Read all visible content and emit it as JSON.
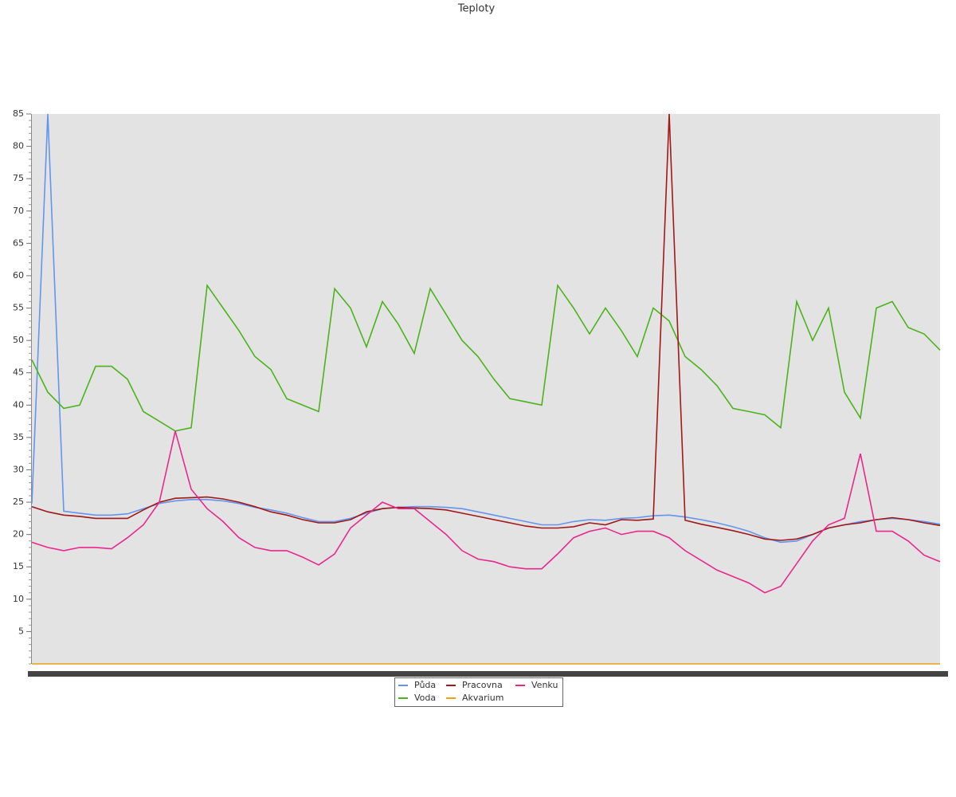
{
  "chart_data": {
    "type": "line",
    "title": "Teploty",
    "ylim": [
      0,
      85
    ],
    "yticks": [
      5,
      10,
      15,
      20,
      25,
      30,
      35,
      40,
      45,
      50,
      55,
      60,
      65,
      70,
      75,
      80,
      85
    ],
    "series": [
      {
        "name": "Půda",
        "color": "#6495ed",
        "values": [
          24.8,
          85,
          23.6,
          23.3,
          23,
          23,
          23.2,
          24,
          24.8,
          25.2,
          25.4,
          25.4,
          25.2,
          24.8,
          24.2,
          23.8,
          23.3,
          22.6,
          22,
          22,
          22.5,
          23.3,
          24,
          24.2,
          24.3,
          24.3,
          24.2,
          24,
          23.5,
          23,
          22.5,
          22,
          21.5,
          21.5,
          22,
          22.3,
          22.2,
          22.5,
          22.6,
          22.9,
          23,
          22.7,
          22.3,
          21.8,
          21.2,
          20.5,
          19.5,
          18.8,
          19,
          20,
          21,
          21.5,
          22,
          22.3,
          22.5,
          22.3,
          22,
          21.6
        ]
      },
      {
        "name": "Voda",
        "color": "#4cb31c",
        "values": [
          47,
          42,
          39.5,
          40,
          46,
          46,
          44,
          39,
          37.5,
          36,
          36.5,
          58.5,
          55,
          51.5,
          47.5,
          45.5,
          41,
          40,
          39,
          58,
          55,
          49,
          56,
          52.5,
          48,
          58,
          54,
          50,
          47.5,
          44,
          41,
          40.5,
          40,
          58.5,
          55,
          51,
          55,
          51.5,
          47.5,
          55,
          53,
          47.5,
          45.5,
          43,
          39.5,
          39,
          38.5,
          36.5,
          56,
          50,
          55,
          42,
          38,
          55,
          56,
          52,
          51,
          48.5
        ]
      },
      {
        "name": "Pracovna",
        "color": "#a01818",
        "values": [
          24.3,
          23.5,
          23,
          22.8,
          22.5,
          22.5,
          22.5,
          23.8,
          25,
          25.6,
          25.7,
          25.8,
          25.5,
          25,
          24.3,
          23.5,
          23,
          22.3,
          21.8,
          21.8,
          22.3,
          23.5,
          24,
          24.2,
          24.1,
          24,
          23.8,
          23.3,
          22.8,
          22.3,
          21.8,
          21.3,
          21,
          21,
          21.2,
          21.8,
          21.5,
          22.3,
          22.2,
          22.4,
          85,
          22.2,
          21.6,
          21.1,
          20.6,
          20,
          19.3,
          19.1,
          19.3,
          20,
          21,
          21.5,
          21.8,
          22.3,
          22.6,
          22.3,
          21.8,
          21.4
        ]
      },
      {
        "name": "Akvarium",
        "color": "#e8a317",
        "values": [
          0,
          0,
          0,
          0,
          0,
          0,
          0,
          0,
          0,
          0,
          0,
          0,
          0,
          0,
          0,
          0,
          0,
          0,
          0,
          0,
          0,
          0,
          0,
          0,
          0,
          0,
          0,
          0,
          0,
          0,
          0,
          0,
          0,
          0,
          0,
          0,
          0,
          0,
          0,
          0,
          0,
          0,
          0,
          0,
          0,
          0,
          0,
          0,
          0,
          0,
          0,
          0,
          0,
          0,
          0,
          0,
          0,
          0
        ]
      },
      {
        "name": "Venku",
        "color": "#e8288c",
        "values": [
          18.8,
          18,
          17.5,
          18,
          18,
          17.8,
          19.5,
          21.5,
          25,
          36,
          27,
          24,
          22,
          19.5,
          18,
          17.5,
          17.5,
          16.5,
          15.3,
          17,
          21,
          23,
          25,
          24,
          24,
          22,
          20,
          17.5,
          16.2,
          15.8,
          15,
          14.7,
          14.7,
          17,
          19.5,
          20.5,
          21,
          20,
          20.5,
          20.5,
          19.5,
          17.5,
          16,
          14.5,
          13.5,
          12.5,
          11,
          12,
          15.5,
          19,
          21.5,
          22.5,
          32.5,
          20.5,
          20.5,
          19,
          16.8,
          15.8
        ]
      }
    ]
  }
}
